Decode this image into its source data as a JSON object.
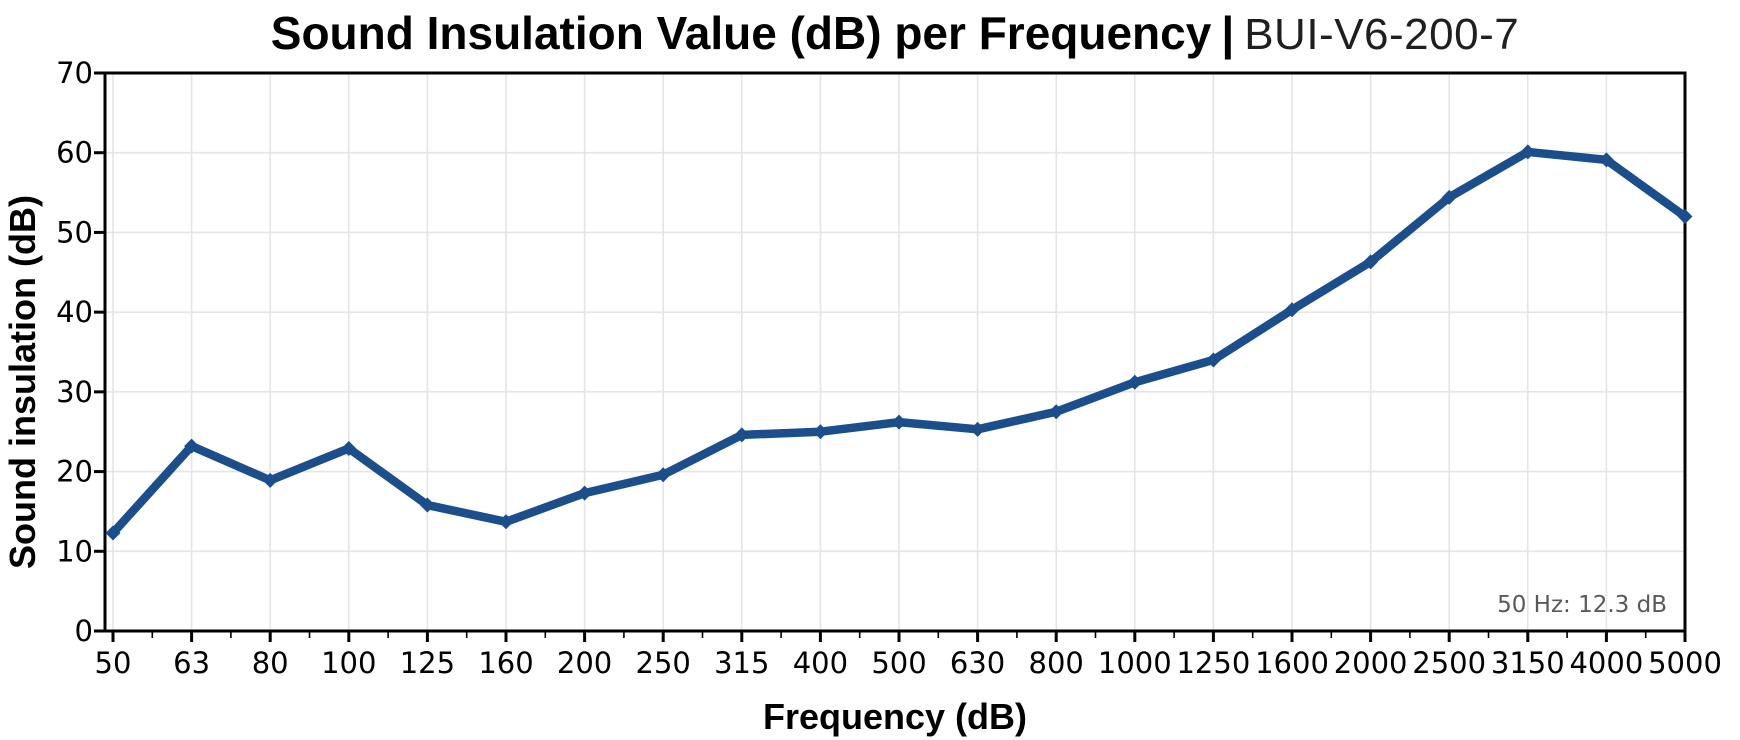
{
  "chart_data": {
    "type": "line",
    "title": "Sound Insulation Value (dB) per Frequency",
    "title_separator": "|",
    "title_suffix": "BUI-V6-200-7",
    "xlabel": "Frequency (dB)",
    "ylabel": "Sound insulation (dB)",
    "categories": [
      "50",
      "63",
      "80",
      "100",
      "125",
      "160",
      "200",
      "250",
      "315",
      "400",
      "500",
      "630",
      "800",
      "1000",
      "1250",
      "1600",
      "2000",
      "2500",
      "3150",
      "4000",
      "5000"
    ],
    "values": [
      12.3,
      23.2,
      18.9,
      22.9,
      15.8,
      13.7,
      17.3,
      19.6,
      24.6,
      25.0,
      26.2,
      25.3,
      27.5,
      31.2,
      34.0,
      40.3,
      46.3,
      54.4,
      60.1,
      59.1,
      52.0
    ],
    "yticks": [
      0,
      10,
      20,
      30,
      40,
      50,
      60,
      70
    ],
    "ylim": [
      0,
      70
    ],
    "grid": true,
    "legend": "none",
    "line_color": "#1b4e8b",
    "grid_color": "#e5e5e5",
    "annotation": {
      "text": "50 Hz: 12.3 dB",
      "color": "#595959"
    }
  }
}
